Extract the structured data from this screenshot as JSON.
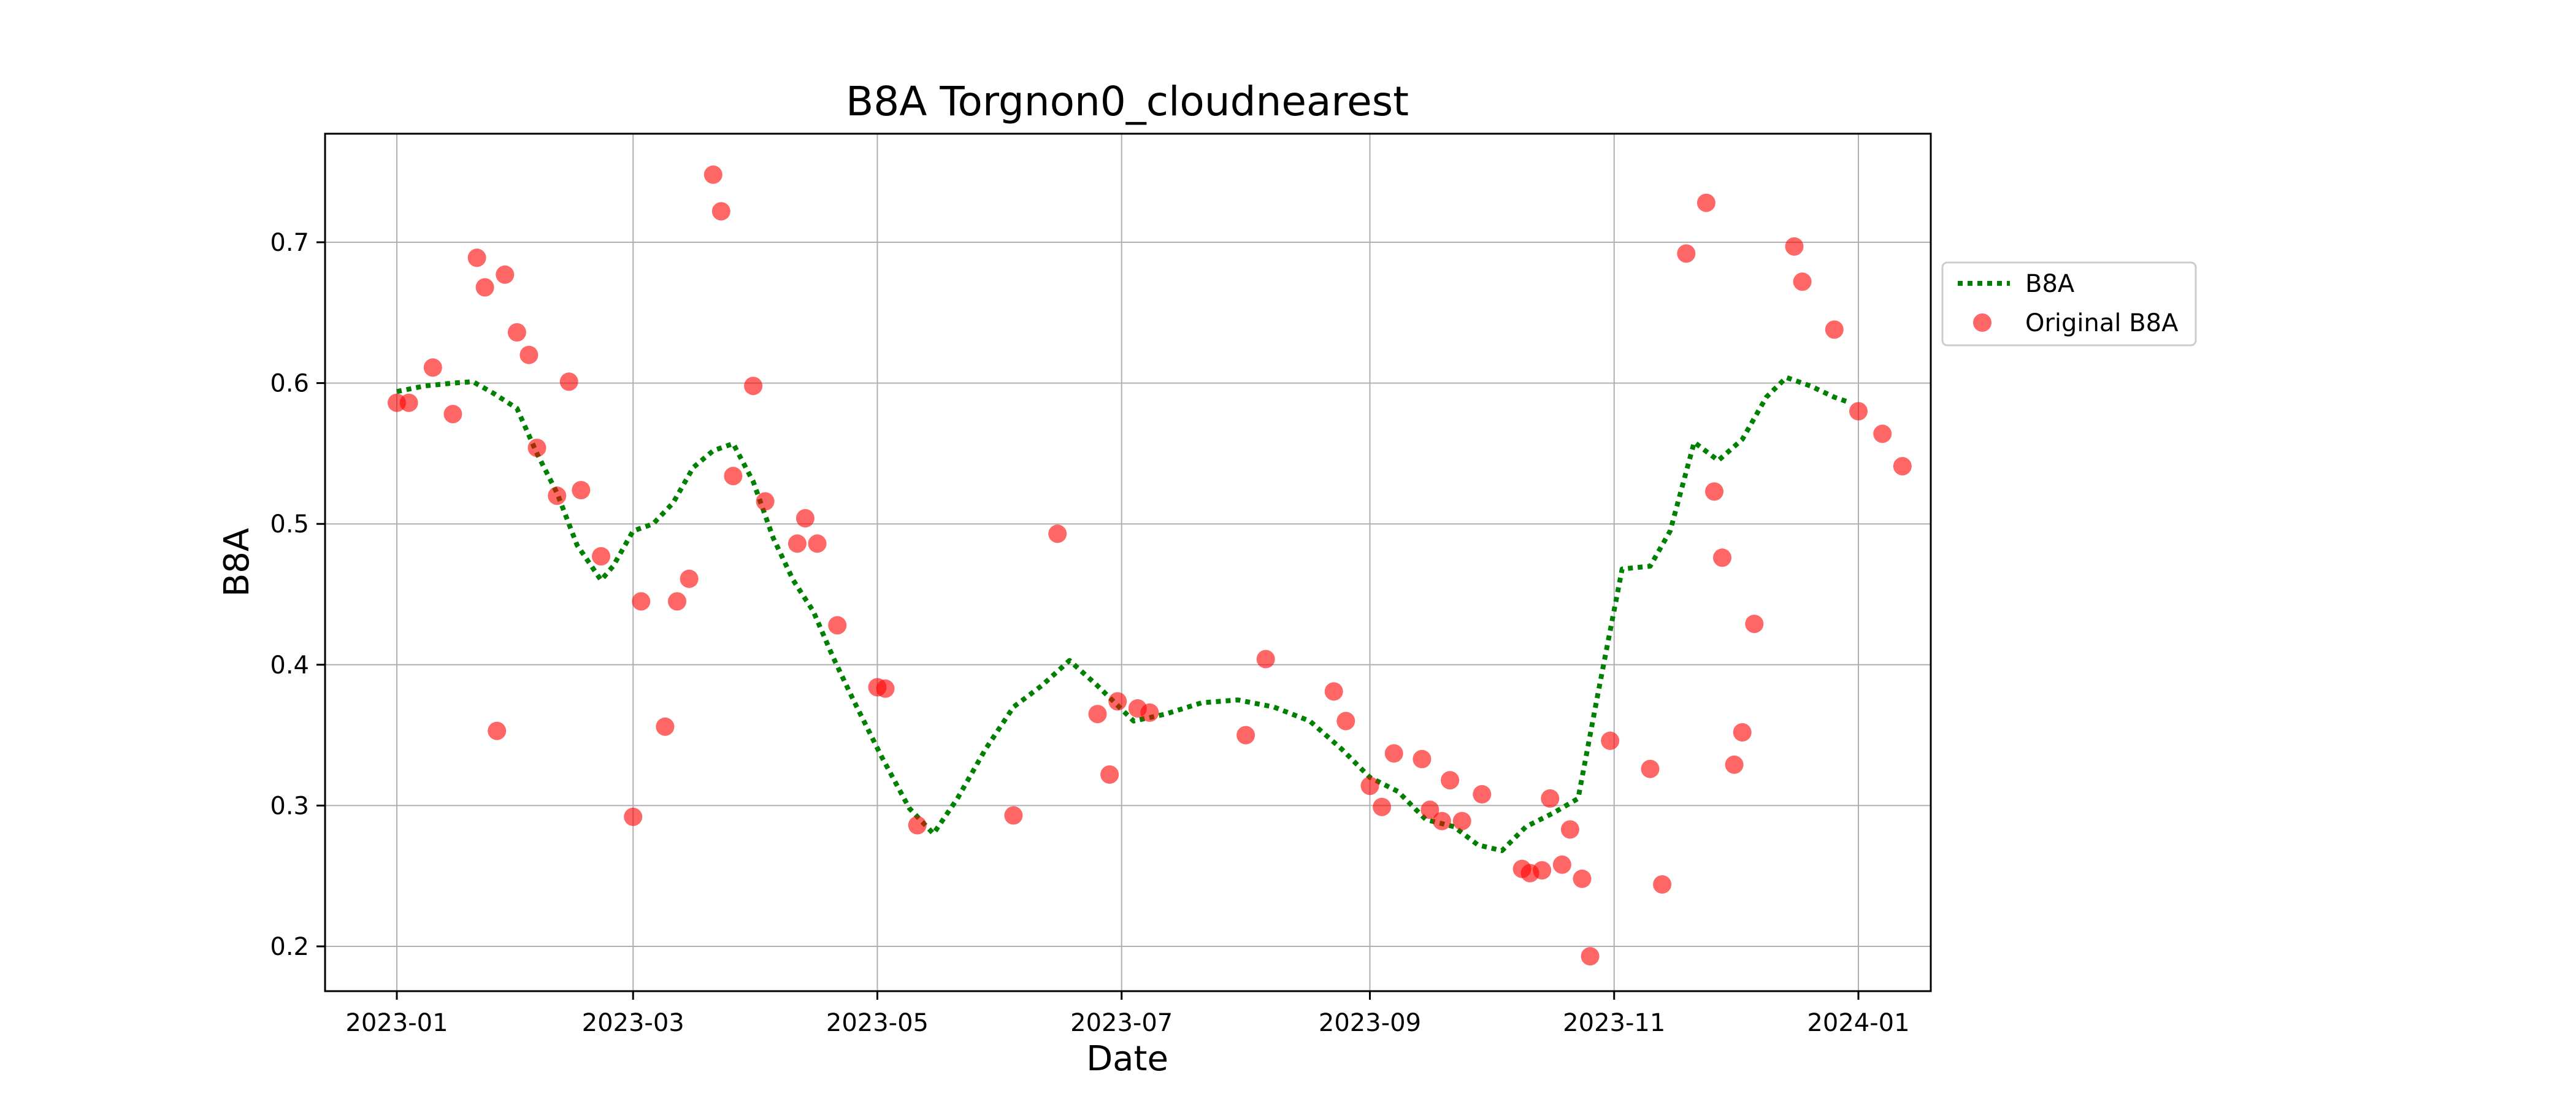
{
  "chart_data": {
    "type": "scatter",
    "title": "B8A Torgnon0_cloudnearest",
    "xlabel": "Date",
    "ylabel": "B8A",
    "x_ticks": [
      "2023-01",
      "2023-03",
      "2023-05",
      "2023-07",
      "2023-09",
      "2023-11",
      "2024-01"
    ],
    "y_ticks": [
      "0.2",
      "0.3",
      "0.4",
      "0.5",
      "0.6",
      "0.7"
    ],
    "xlim": [
      "2022-12-23",
      "2024-01-08"
    ],
    "ylim": [
      0.167,
      0.779
    ],
    "grid": true,
    "legend_position": "outside-right",
    "colors": {
      "line": "#008000",
      "points": "#ff0000"
    },
    "series": [
      {
        "name": "B8A",
        "kind": "line",
        "style": "dotted",
        "points": [
          [
            "2023-01-01",
            0.594
          ],
          [
            "2023-01-08",
            0.598
          ],
          [
            "2023-01-15",
            0.6
          ],
          [
            "2023-01-20",
            0.601
          ],
          [
            "2023-01-25",
            0.593
          ],
          [
            "2023-01-31",
            0.582
          ],
          [
            "2023-02-05",
            0.55
          ],
          [
            "2023-02-10",
            0.522
          ],
          [
            "2023-02-15",
            0.485
          ],
          [
            "2023-02-21",
            0.46
          ],
          [
            "2023-02-24",
            0.47
          ],
          [
            "2023-03-01",
            0.495
          ],
          [
            "2023-03-06",
            0.5
          ],
          [
            "2023-03-11",
            0.515
          ],
          [
            "2023-03-16",
            0.54
          ],
          [
            "2023-03-21",
            0.552
          ],
          [
            "2023-03-26",
            0.557
          ],
          [
            "2023-03-31",
            0.53
          ],
          [
            "2023-04-05",
            0.49
          ],
          [
            "2023-04-10",
            0.46
          ],
          [
            "2023-04-15",
            0.438
          ],
          [
            "2023-04-20",
            0.405
          ],
          [
            "2023-04-25",
            0.375
          ],
          [
            "2023-05-02",
            0.335
          ],
          [
            "2023-05-09",
            0.298
          ],
          [
            "2023-05-15",
            0.28
          ],
          [
            "2023-05-21",
            0.305
          ],
          [
            "2023-05-28",
            0.34
          ],
          [
            "2023-06-04",
            0.37
          ],
          [
            "2023-06-11",
            0.385
          ],
          [
            "2023-06-18",
            0.403
          ],
          [
            "2023-06-25",
            0.385
          ],
          [
            "2023-07-04",
            0.36
          ],
          [
            "2023-07-12",
            0.365
          ],
          [
            "2023-07-21",
            0.373
          ],
          [
            "2023-07-30",
            0.375
          ],
          [
            "2023-08-08",
            0.37
          ],
          [
            "2023-08-17",
            0.36
          ],
          [
            "2023-08-25",
            0.34
          ],
          [
            "2023-09-01",
            0.32
          ],
          [
            "2023-09-08",
            0.31
          ],
          [
            "2023-09-15",
            0.29
          ],
          [
            "2023-09-22",
            0.285
          ],
          [
            "2023-09-28",
            0.272
          ],
          [
            "2023-10-04",
            0.268
          ],
          [
            "2023-10-10",
            0.285
          ],
          [
            "2023-10-17",
            0.295
          ],
          [
            "2023-10-23",
            0.305
          ],
          [
            "2023-10-28",
            0.38
          ],
          [
            "2023-11-03",
            0.468
          ],
          [
            "2023-11-10",
            0.47
          ],
          [
            "2023-11-15",
            0.495
          ],
          [
            "2023-11-21",
            0.558
          ],
          [
            "2023-11-27",
            0.545
          ],
          [
            "2023-12-03",
            0.56
          ],
          [
            "2023-12-09",
            0.59
          ],
          [
            "2023-12-14",
            0.604
          ],
          [
            "2023-12-20",
            0.598
          ],
          [
            "2023-12-26",
            0.59
          ],
          [
            "2023-12-30",
            0.586
          ]
        ]
      },
      {
        "name": "Original B8A",
        "kind": "scatter",
        "points": [
          [
            "2023-01-01",
            0.586
          ],
          [
            "2023-01-04",
            0.586
          ],
          [
            "2023-01-10",
            0.611
          ],
          [
            "2023-01-15",
            0.578
          ],
          [
            "2023-01-21",
            0.689
          ],
          [
            "2023-01-23",
            0.668
          ],
          [
            "2023-01-26",
            0.353
          ],
          [
            "2023-01-28",
            0.677
          ],
          [
            "2023-01-31",
            0.636
          ],
          [
            "2023-02-03",
            0.62
          ],
          [
            "2023-02-05",
            0.554
          ],
          [
            "2023-02-10",
            0.52
          ],
          [
            "2023-02-13",
            0.601
          ],
          [
            "2023-02-16",
            0.524
          ],
          [
            "2023-02-21",
            0.477
          ],
          [
            "2023-03-01",
            0.292
          ],
          [
            "2023-03-03",
            0.445
          ],
          [
            "2023-03-09",
            0.356
          ],
          [
            "2023-03-12",
            0.445
          ],
          [
            "2023-03-15",
            0.461
          ],
          [
            "2023-03-21",
            0.748
          ],
          [
            "2023-03-23",
            0.722
          ],
          [
            "2023-03-26",
            0.534
          ],
          [
            "2023-03-31",
            0.598
          ],
          [
            "2023-04-03",
            0.516
          ],
          [
            "2023-04-11",
            0.486
          ],
          [
            "2023-04-13",
            0.504
          ],
          [
            "2023-04-16",
            0.486
          ],
          [
            "2023-04-21",
            0.428
          ],
          [
            "2023-05-01",
            0.384
          ],
          [
            "2023-05-03",
            0.383
          ],
          [
            "2023-05-11",
            0.286
          ],
          [
            "2023-06-04",
            0.293
          ],
          [
            "2023-06-15",
            0.493
          ],
          [
            "2023-06-25",
            0.365
          ],
          [
            "2023-06-28",
            0.322
          ],
          [
            "2023-06-30",
            0.374
          ],
          [
            "2023-07-05",
            0.369
          ],
          [
            "2023-07-08",
            0.366
          ],
          [
            "2023-08-01",
            0.35
          ],
          [
            "2023-08-06",
            0.404
          ],
          [
            "2023-08-23",
            0.381
          ],
          [
            "2023-08-26",
            0.36
          ],
          [
            "2023-09-01",
            0.314
          ],
          [
            "2023-09-04",
            0.299
          ],
          [
            "2023-09-07",
            0.337
          ],
          [
            "2023-09-14",
            0.333
          ],
          [
            "2023-09-16",
            0.297
          ],
          [
            "2023-09-19",
            0.289
          ],
          [
            "2023-09-21",
            0.318
          ],
          [
            "2023-09-24",
            0.289
          ],
          [
            "2023-09-29",
            0.308
          ],
          [
            "2023-10-09",
            0.255
          ],
          [
            "2023-10-11",
            0.252
          ],
          [
            "2023-10-14",
            0.254
          ],
          [
            "2023-10-16",
            0.305
          ],
          [
            "2023-10-19",
            0.258
          ],
          [
            "2023-10-21",
            0.283
          ],
          [
            "2023-10-24",
            0.248
          ],
          [
            "2023-10-26",
            0.193
          ],
          [
            "2023-10-31",
            0.346
          ],
          [
            "2023-11-10",
            0.326
          ],
          [
            "2023-11-13",
            0.244
          ],
          [
            "2023-11-19",
            0.692
          ],
          [
            "2023-11-24",
            0.728
          ],
          [
            "2023-11-26",
            0.523
          ],
          [
            "2023-11-28",
            0.476
          ],
          [
            "2023-12-01",
            0.329
          ],
          [
            "2023-12-03",
            0.352
          ],
          [
            "2023-12-06",
            0.429
          ],
          [
            "2023-12-16",
            0.697
          ],
          [
            "2023-12-18",
            0.672
          ],
          [
            "2023-12-26",
            0.638
          ],
          [
            "2024-01-01",
            0.58
          ],
          [
            "2024-01-07",
            0.564
          ],
          [
            "2024-01-12",
            0.541
          ]
        ]
      }
    ]
  }
}
